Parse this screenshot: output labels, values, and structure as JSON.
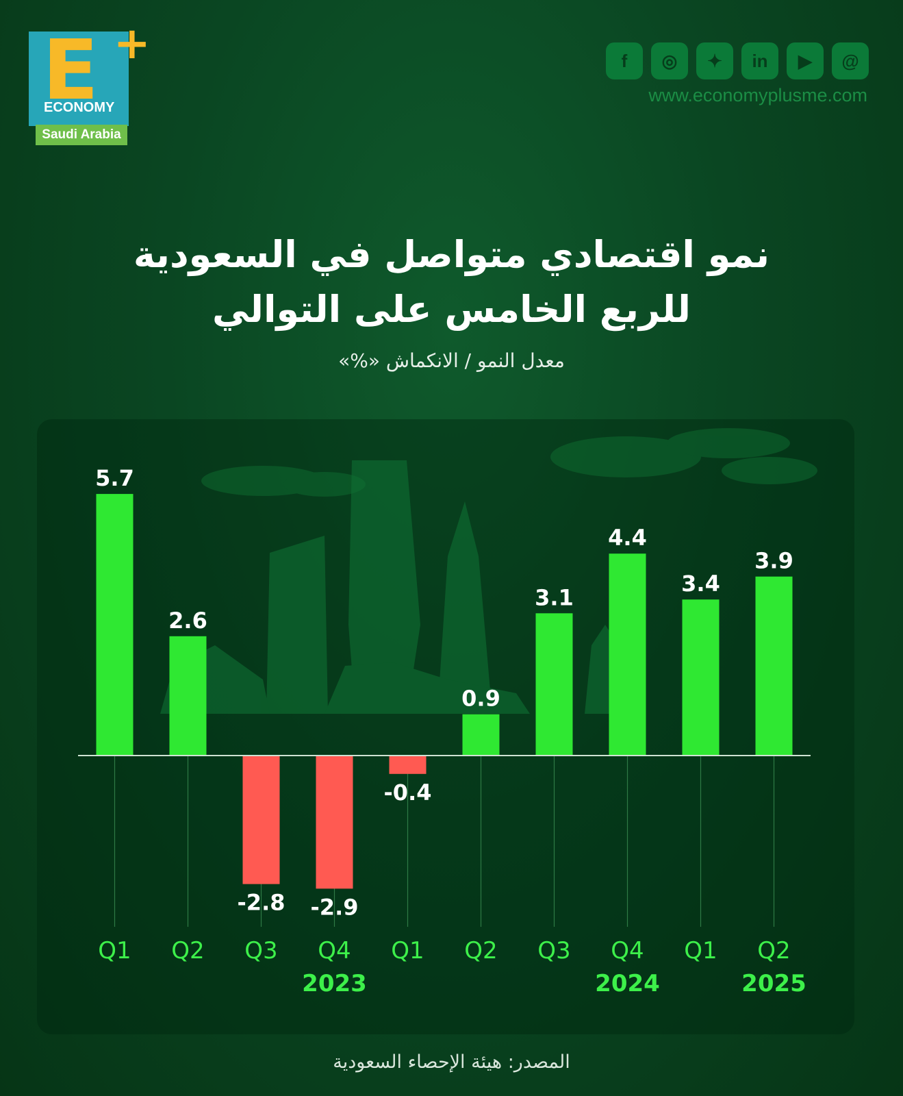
{
  "logo": {
    "letter": "E",
    "plus": "+",
    "wordmark": "ECONOMY",
    "region": "Saudi Arabia"
  },
  "social": {
    "icons": [
      "facebook-icon",
      "instagram-icon",
      "twitter-icon",
      "linkedin-icon",
      "youtube-icon",
      "threads-icon"
    ],
    "glyphs": [
      "f",
      "◎",
      "✦",
      "in",
      "▶",
      "@"
    ],
    "website": "www.economyplusme.com"
  },
  "title_line1": "نمو اقتصادي متواصل في السعودية",
  "title_line2": "للربع الخامس على التوالي",
  "source": "المصدر: هيئة الإحصاء السعودية",
  "colors": {
    "positive": "#2fe832",
    "negative": "#ff5a52",
    "axis_label": "#3df04a",
    "background": "#0a4622"
  },
  "chart_data": {
    "type": "bar",
    "subtitle": "معدل النمو / الانكماش «%»",
    "categories": [
      "Q1",
      "Q2",
      "Q3",
      "Q4",
      "Q1",
      "Q2",
      "Q3",
      "Q4",
      "Q1",
      "Q2"
    ],
    "value_labels": [
      "5.7",
      "2.6",
      "-2.8",
      "-2.9",
      "-0.4",
      "0.9",
      "3.1",
      "4.4",
      "3.4",
      "3.9"
    ],
    "years": [
      {
        "label": "2023",
        "under_index": 3
      },
      {
        "label": "2024",
        "under_index": 7
      },
      {
        "label": "2025",
        "under_index": 9
      }
    ],
    "series": [
      {
        "values": [
          5.7,
          2.6,
          -2.8,
          -2.9,
          -0.4,
          0.9,
          3.1,
          4.4,
          3.4,
          3.9
        ]
      }
    ],
    "ylim": [
      -3.6,
      6.6
    ],
    "grid": false,
    "legend": "none"
  }
}
